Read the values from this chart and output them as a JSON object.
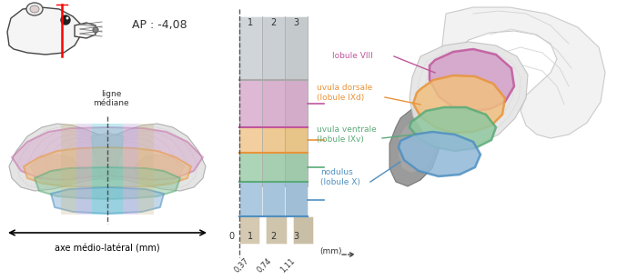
{
  "ap_label": "AP : -4,08",
  "ligne_mediane": "ligne\nmédiane",
  "axe_label": "axe médio-latéral (mm)",
  "colors": {
    "lobule8": "#c0569c",
    "lobule9d": "#e8943a",
    "lobule9v": "#5aaa78",
    "lobule10": "#4f8fc0",
    "lobule8_fill": "#d4a0c8",
    "lobule9d_fill": "#f0c080",
    "lobule9v_fill": "#90c8a0",
    "lobule10_fill": "#90b8d8"
  },
  "strip_x_labels": [
    "0,37",
    "0,74",
    "1,11"
  ],
  "lobule_labels": [
    "lobule VIII",
    "uvula dorsale\n(lobule IXd)",
    "uvula ventrale\n(lobule IXv)",
    "nodulus\n(lobule X)"
  ]
}
